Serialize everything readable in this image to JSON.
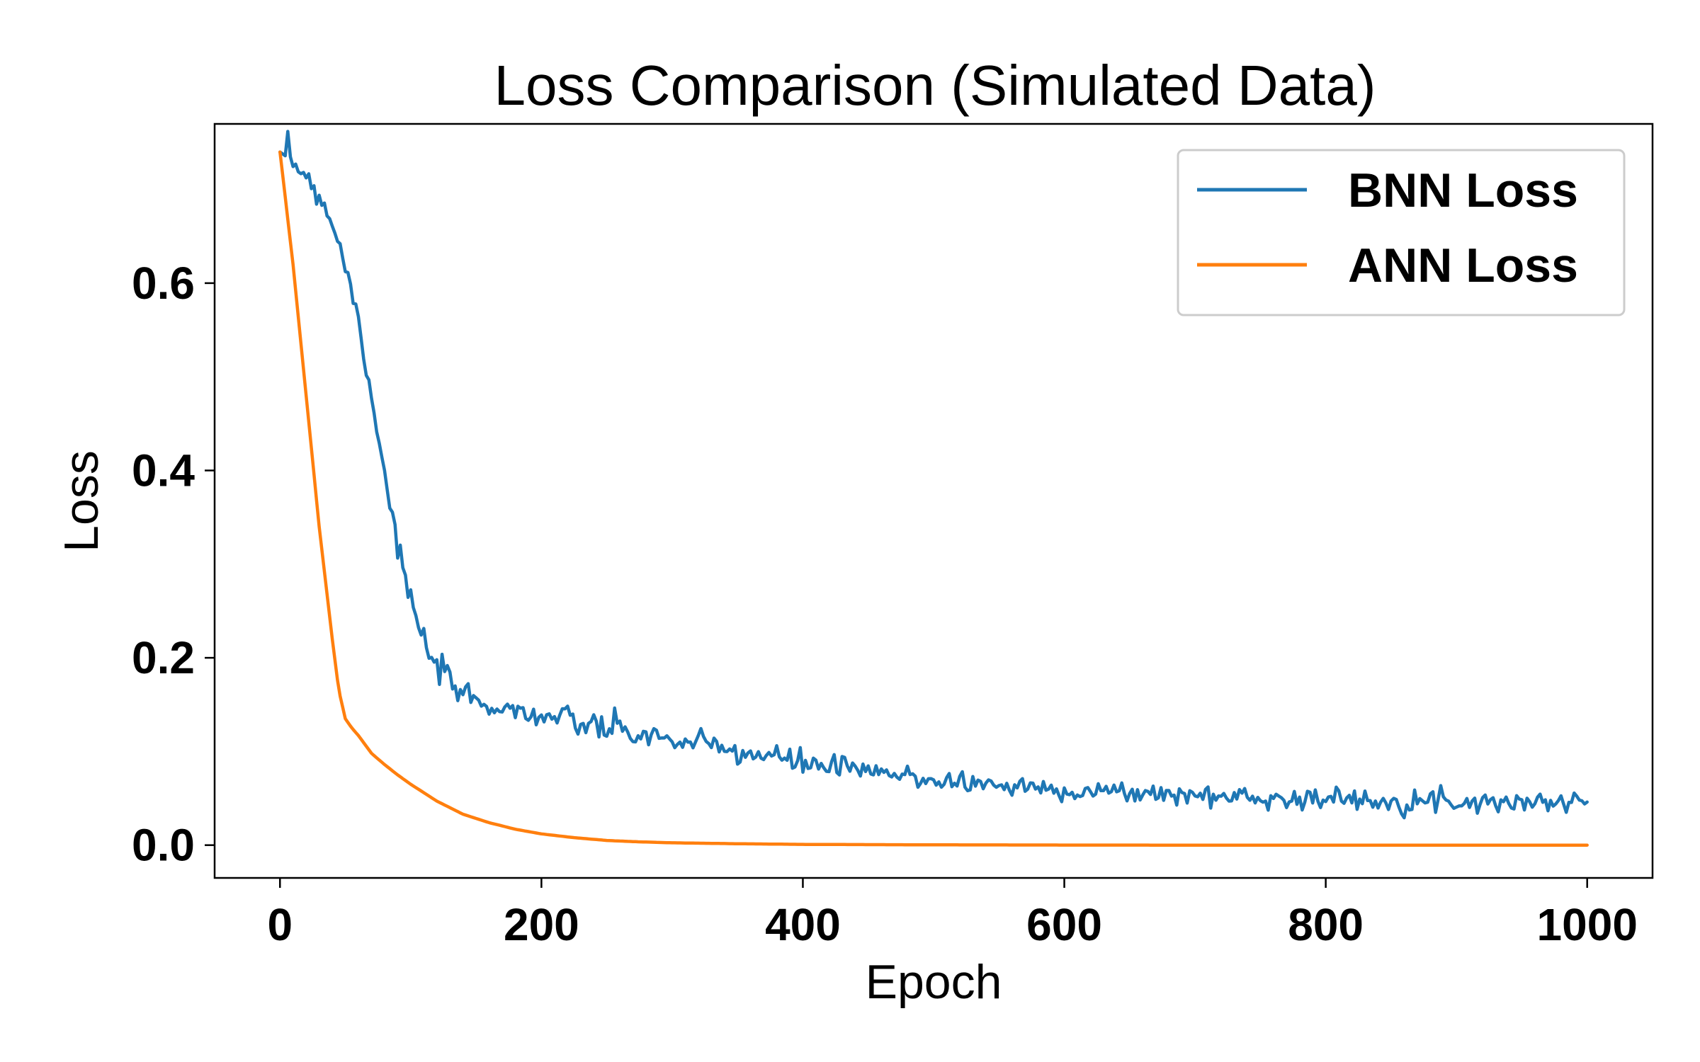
{
  "chart_data": {
    "type": "line",
    "title": "Loss Comparison (Simulated Data)",
    "xlabel": "Epoch",
    "ylabel": "Loss",
    "xlim": [
      -50,
      1050
    ],
    "ylim": [
      -0.035,
      0.77
    ],
    "xticks": [
      0,
      200,
      400,
      600,
      800,
      1000
    ],
    "xtick_labels": [
      "0",
      "200",
      "400",
      "600",
      "800",
      "1000"
    ],
    "yticks": [
      0.0,
      0.2,
      0.4,
      0.6
    ],
    "ytick_labels": [
      "0.0",
      "0.2",
      "0.4",
      "0.6"
    ],
    "grid": false,
    "legend_position": "top-right",
    "series": [
      {
        "name": "BNN Loss",
        "color": "#1f77b4",
        "noise": 0.006,
        "x": [
          0,
          10,
          20,
          30,
          40,
          50,
          60,
          70,
          80,
          90,
          100,
          110,
          120,
          130,
          140,
          150,
          160,
          170,
          180,
          190,
          200,
          225,
          250,
          275,
          300,
          325,
          350,
          375,
          400,
          425,
          450,
          475,
          500,
          550,
          600,
          650,
          700,
          750,
          800,
          850,
          900,
          950,
          1000
        ],
        "y": [
          0.74,
          0.73,
          0.715,
          0.695,
          0.665,
          0.62,
          0.56,
          0.48,
          0.4,
          0.32,
          0.26,
          0.215,
          0.19,
          0.172,
          0.162,
          0.155,
          0.15,
          0.147,
          0.144,
          0.141,
          0.138,
          0.131,
          0.124,
          0.118,
          0.112,
          0.106,
          0.1,
          0.094,
          0.088,
          0.083,
          0.078,
          0.074,
          0.07,
          0.064,
          0.059,
          0.056,
          0.053,
          0.051,
          0.049,
          0.048,
          0.047,
          0.046,
          0.046
        ]
      },
      {
        "name": "ANN Loss",
        "color": "#ff7f0e",
        "noise": 0,
        "x": [
          0,
          10,
          20,
          30,
          40,
          45,
          50,
          55,
          60,
          70,
          80,
          90,
          100,
          120,
          140,
          160,
          180,
          200,
          225,
          250,
          275,
          300,
          350,
          400,
          500,
          600,
          700,
          800,
          900,
          1000
        ],
        "y": [
          0.74,
          0.62,
          0.48,
          0.34,
          0.22,
          0.165,
          0.135,
          0.125,
          0.117,
          0.098,
          0.086,
          0.075,
          0.065,
          0.047,
          0.033,
          0.024,
          0.017,
          0.012,
          0.008,
          0.005,
          0.0035,
          0.0025,
          0.0015,
          0.0008,
          0.0003,
          0.0001,
          0.0,
          0.0,
          0.0,
          0.0
        ]
      }
    ]
  }
}
